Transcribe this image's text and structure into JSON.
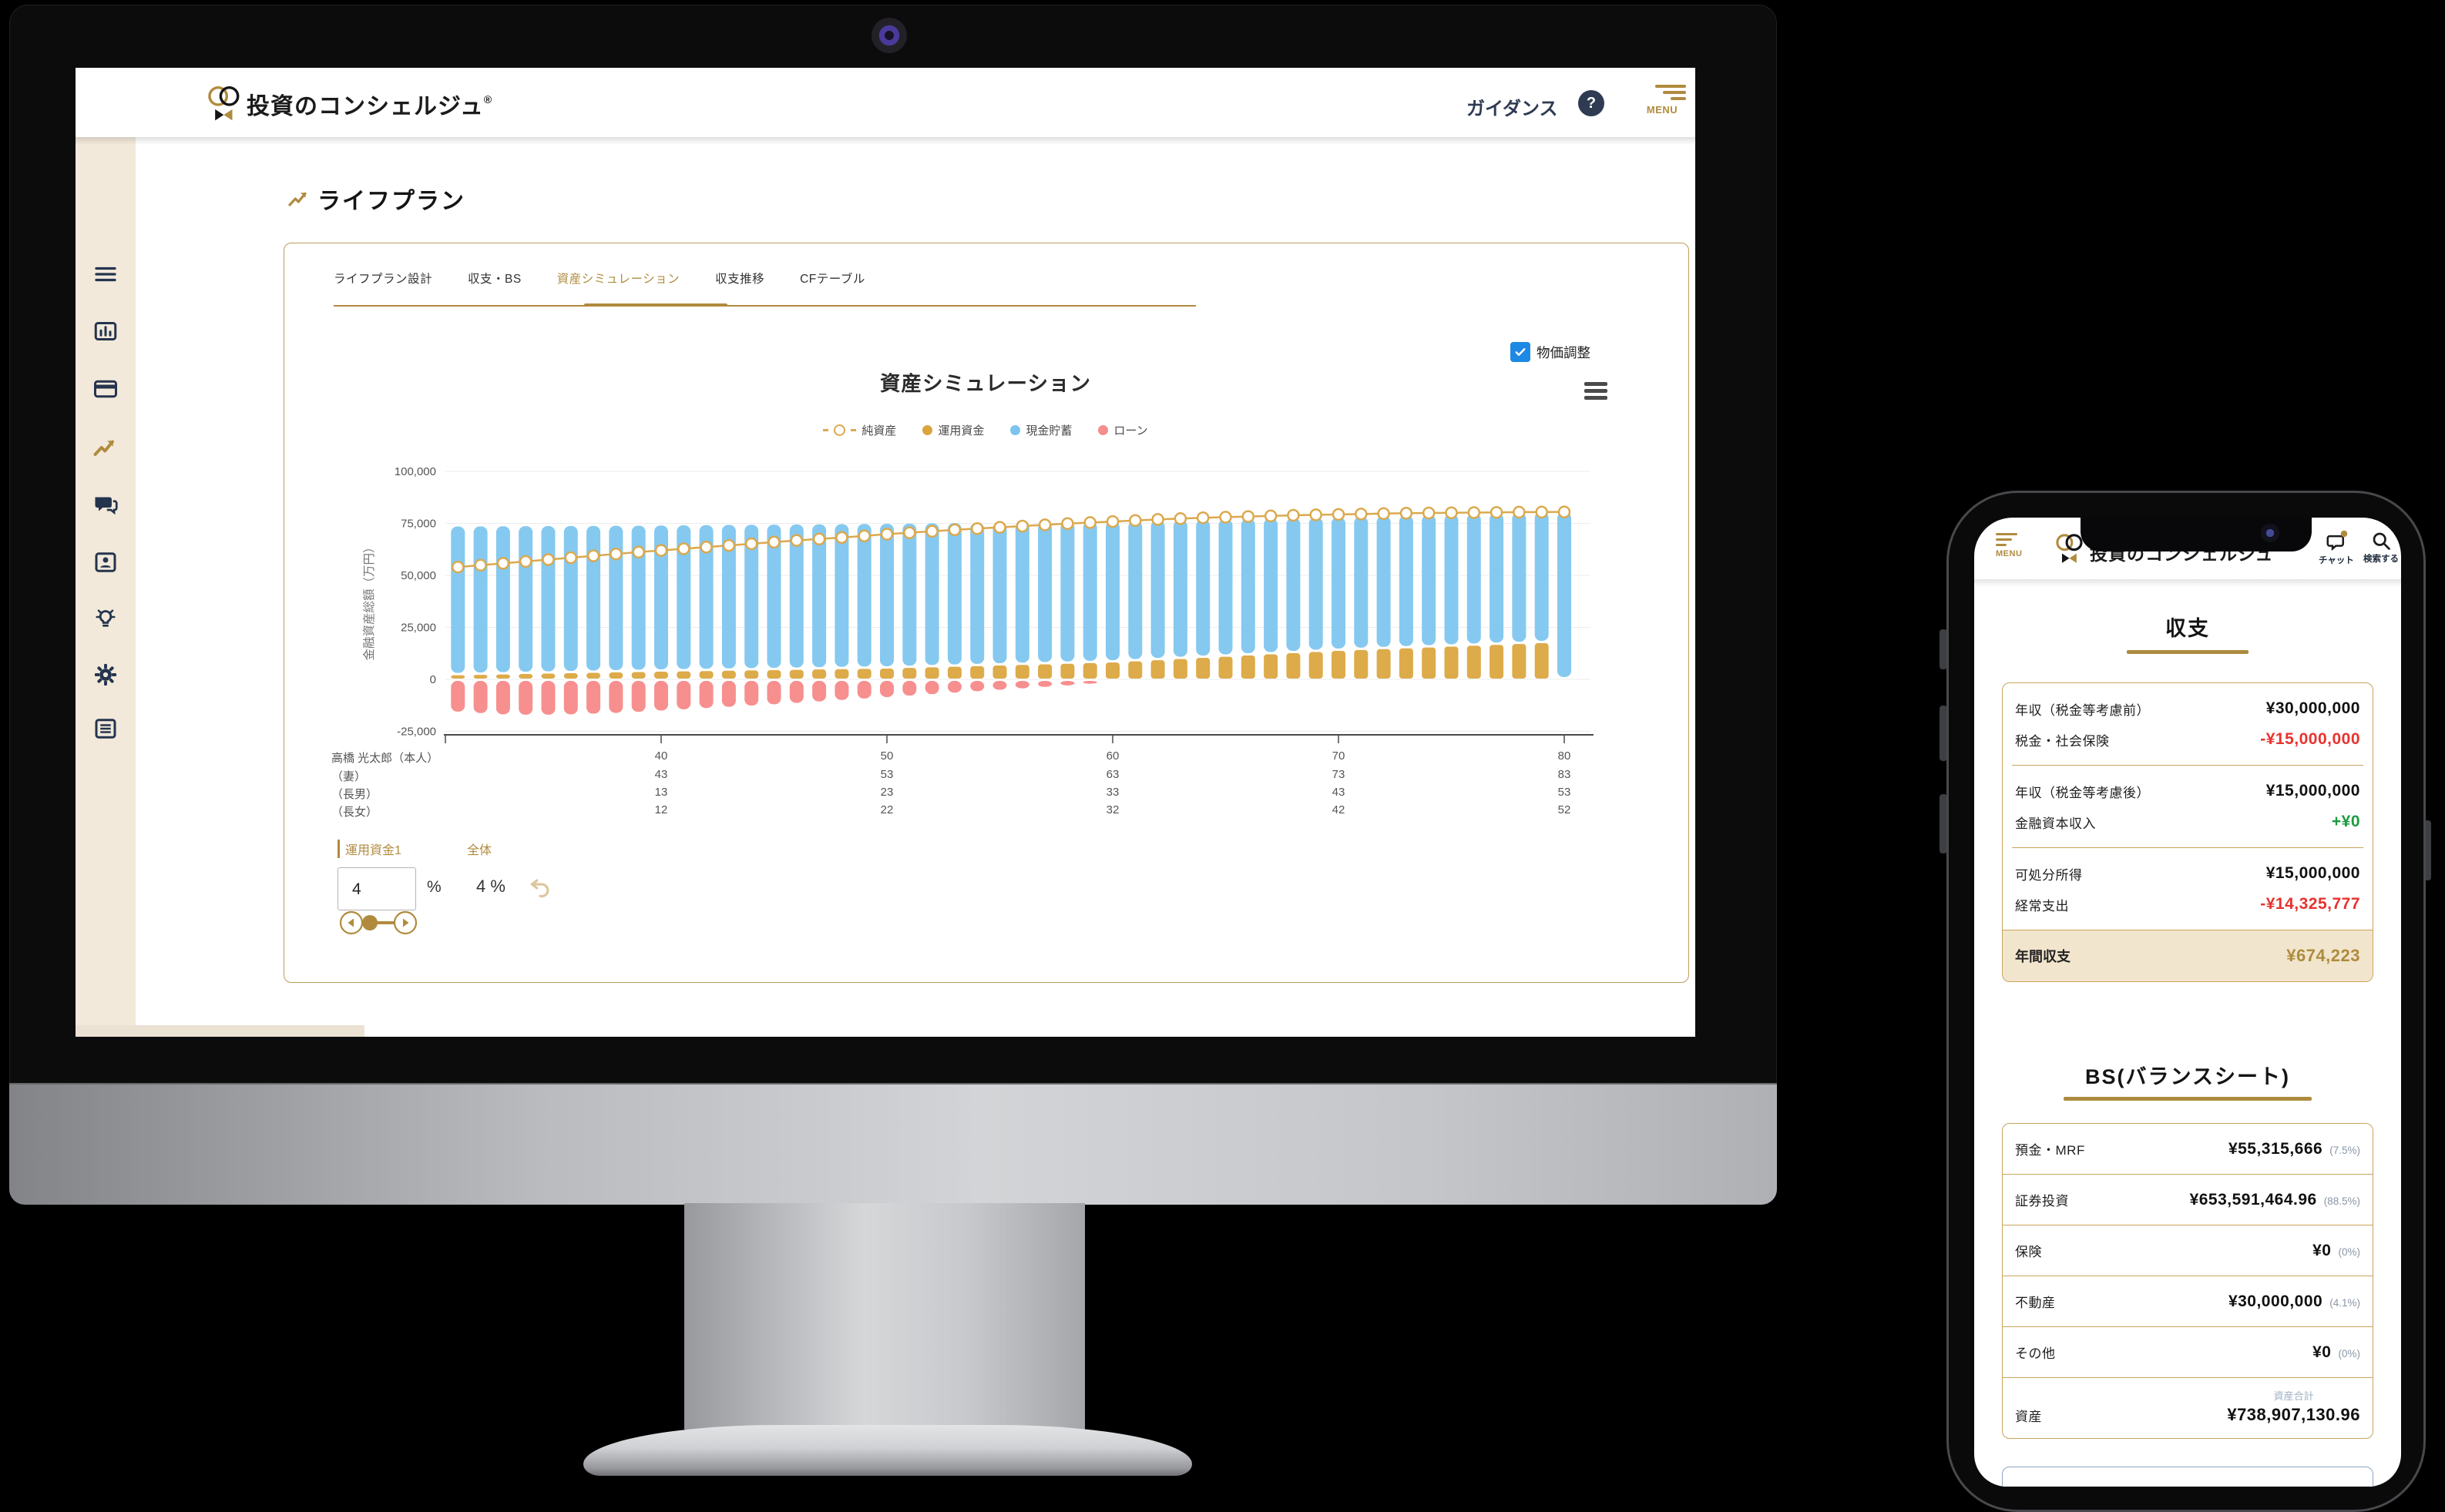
{
  "colors": {
    "gold": "#B08B3E",
    "gold_border": "#C9A45C",
    "navy": "#2E3B52",
    "red": "#E8322E",
    "green": "#1D9A3E",
    "checkbox_blue": "#1E88E5",
    "sidebar_bg": "#F2E9DB",
    "highlight_row_bg": "#F1E5CD"
  },
  "desktop": {
    "header": {
      "brand": "投資のコンシェルジュ",
      "reg_mark": "®",
      "guidance_label": "ガイダンス",
      "help_glyph": "?",
      "menu_label": "MENU"
    },
    "page_title": "ライフプラン",
    "tabs": [
      {
        "label": "ライフプラン設計"
      },
      {
        "label": "収支・BS"
      },
      {
        "label": "資産シミュレーション"
      },
      {
        "label": "収支推移"
      },
      {
        "label": "CFテーブル"
      }
    ],
    "price_adjust_label": "物価調整",
    "family": {
      "rows": [
        {
          "label": "高橋 光太郎（本人）",
          "values": [
            "40",
            "50",
            "60",
            "70",
            "80"
          ]
        },
        {
          "label": "（妻）",
          "values": [
            "43",
            "53",
            "63",
            "73",
            "83"
          ]
        },
        {
          "label": "（長男）",
          "values": [
            "13",
            "23",
            "33",
            "43",
            "53"
          ]
        },
        {
          "label": "（長女）",
          "values": [
            "12",
            "22",
            "32",
            "42",
            "52"
          ]
        }
      ]
    },
    "controls": {
      "fund_tab": "運用資金1",
      "overall_tab": "全体",
      "rate_value": "4",
      "rate_unit": "%",
      "overall_rate": "4 %"
    }
  },
  "chart_data": {
    "type": "bar",
    "title": "資産シミュレーション",
    "ylabel": "金融資産総額（万円）",
    "ylim": [
      -25000,
      100000
    ],
    "yticks": [
      100000,
      75000,
      50000,
      25000,
      0,
      -25000
    ],
    "ytick_labels": [
      "100,000",
      "75,000",
      "50,000",
      "25,000",
      "0",
      "-25,000"
    ],
    "x_unit": "age",
    "ages": [
      31,
      32,
      33,
      34,
      35,
      36,
      37,
      38,
      39,
      40,
      41,
      42,
      43,
      44,
      45,
      46,
      47,
      48,
      49,
      50,
      51,
      52,
      53,
      54,
      55,
      56,
      57,
      58,
      59,
      60,
      61,
      62,
      63,
      64,
      65,
      66,
      67,
      68,
      69,
      70,
      71,
      72,
      73,
      74,
      75,
      76,
      77,
      78,
      79,
      80
    ],
    "age_ticks": [
      40,
      50,
      60,
      70,
      80
    ],
    "grid": true,
    "legend_position": "top",
    "series": [
      {
        "name": "純資産",
        "type": "line",
        "color": "#DBA94E",
        "values": [
          54000,
          54900,
          55800,
          56700,
          57600,
          58500,
          59400,
          60300,
          61200,
          62000,
          62800,
          63600,
          64400,
          65200,
          66000,
          66800,
          67500,
          68200,
          69000,
          69800,
          70500,
          71200,
          71900,
          72500,
          73100,
          73700,
          74300,
          74900,
          75400,
          75900,
          76400,
          76900,
          77300,
          77700,
          78000,
          78300,
          78600,
          78900,
          79100,
          79300,
          79500,
          79700,
          79900,
          80000,
          80100,
          80200,
          80300,
          80400,
          80450,
          80500
        ]
      },
      {
        "name": "運用資金",
        "type": "bar",
        "stack": "assets",
        "color": "#DDAB4A",
        "values": [
          2000,
          2190,
          2380,
          2570,
          2760,
          2950,
          3140,
          3330,
          3520,
          3700,
          3850,
          4000,
          4150,
          4300,
          4450,
          4600,
          4750,
          4900,
          5050,
          5200,
          5490,
          5780,
          6070,
          6360,
          6650,
          6940,
          7230,
          7520,
          7810,
          8100,
          8660,
          9220,
          9780,
          10340,
          10900,
          11460,
          12020,
          12580,
          13140,
          13700,
          14110,
          14520,
          14930,
          15340,
          15750,
          16160,
          16570,
          16980,
          17400,
          0
        ]
      },
      {
        "name": "現金貯蓄",
        "type": "bar",
        "stack": "assets",
        "color": "#85C9F0",
        "values": [
          71500,
          71360,
          71220,
          71080,
          70940,
          70800,
          70660,
          70520,
          70380,
          70300,
          70230,
          70160,
          70090,
          70020,
          69950,
          69880,
          69810,
          69740,
          69670,
          69600,
          69430,
          69260,
          69090,
          68920,
          68750,
          68580,
          68410,
          68240,
          68070,
          67900,
          67540,
          67180,
          66820,
          66460,
          66100,
          65740,
          65380,
          65020,
          64660,
          64300,
          64170,
          64040,
          63910,
          63780,
          63650,
          63520,
          63390,
          63260,
          63100,
          80500
        ]
      },
      {
        "name": "ローン",
        "type": "bar",
        "stack": "assets",
        "color": "#F78F8F",
        "values": [
          -15500,
          -16200,
          -16800,
          -17000,
          -17000,
          -16800,
          -16500,
          -16100,
          -15600,
          -15000,
          -14400,
          -13800,
          -13200,
          -12600,
          -12000,
          -11300,
          -10600,
          -9900,
          -9200,
          -8500,
          -7800,
          -7100,
          -6400,
          -5700,
          -5000,
          -4300,
          -3600,
          -2900,
          -2100,
          -1300,
          -500,
          0,
          0,
          0,
          0,
          0,
          0,
          0,
          0,
          0,
          0,
          0,
          0,
          0,
          0,
          0,
          0,
          0,
          0,
          0
        ]
      }
    ]
  },
  "phone": {
    "header": {
      "menu_label": "MENU",
      "brand": "投資のコンシェルジュ",
      "chat_label": "チャット",
      "search_label": "検索する"
    },
    "income": {
      "title": "収支",
      "rows": [
        {
          "label": "年収（税金等考慮前）",
          "value": "¥30,000,000"
        },
        {
          "label": "税金・社会保険",
          "value": "-¥15,000,000"
        },
        {
          "label": "年収（税金等考慮後）",
          "value": "¥15,000,000"
        },
        {
          "label": "金融資本収入",
          "value": "+¥0"
        },
        {
          "label": "可処分所得",
          "value": "¥15,000,000"
        },
        {
          "label": "経常支出",
          "value": "-¥14,325,777"
        }
      ],
      "total": {
        "label": "年間収支",
        "value": "¥674,223"
      }
    },
    "bs": {
      "title": "BS(バランスシート)",
      "rows": [
        {
          "label": "預金・MRF",
          "value": "¥55,315,666",
          "pct": "(7.5%)"
        },
        {
          "label": "証券投資",
          "value": "¥653,591,464.96",
          "pct": "(88.5%)"
        },
        {
          "label": "保険",
          "value": "¥0",
          "pct": "(0%)"
        },
        {
          "label": "不動産",
          "value": "¥30,000,000",
          "pct": "(4.1%)"
        },
        {
          "label": "その他",
          "value": "¥0",
          "pct": "(0%)"
        }
      ],
      "total": {
        "label": "資産",
        "sub_label": "資産合計",
        "value": "¥738,907,130.96"
      }
    }
  }
}
